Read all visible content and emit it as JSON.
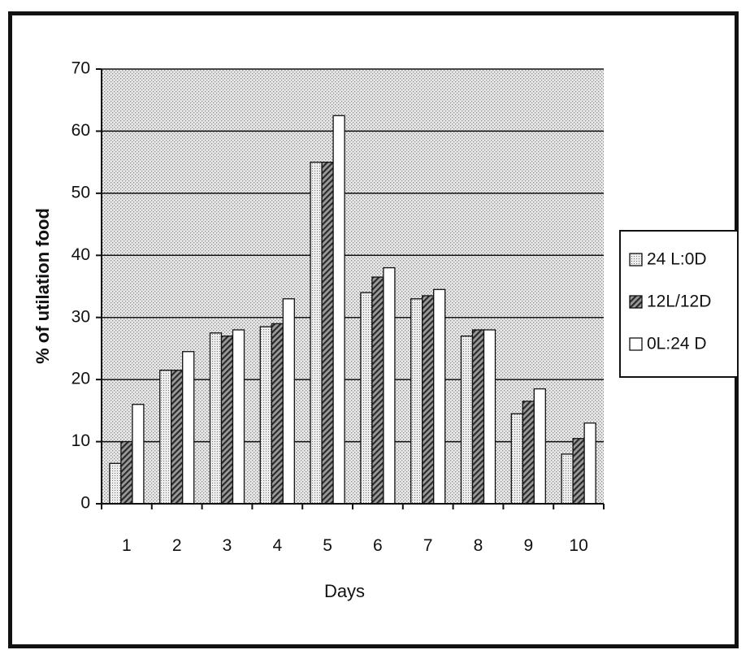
{
  "chart_data": {
    "type": "bar",
    "title": "",
    "xlabel": "Days",
    "ylabel": "% of utilation food",
    "ylim": [
      0,
      70
    ],
    "yticks": [
      0,
      10,
      20,
      30,
      40,
      50,
      60,
      70
    ],
    "grid": true,
    "legend_position": "right",
    "categories": [
      "1",
      "2",
      "3",
      "4",
      "5",
      "6",
      "7",
      "8",
      "9",
      "10"
    ],
    "series": [
      {
        "name": "24 L:0D",
        "pattern": "light-dotted",
        "values": [
          6.5,
          21.5,
          27.5,
          28.5,
          55,
          34,
          33,
          27,
          14.5,
          8
        ]
      },
      {
        "name": "12L/12D",
        "pattern": "hatched-dark",
        "values": [
          10,
          21.5,
          27,
          29,
          55,
          36.5,
          33.5,
          28,
          16.5,
          10.5
        ]
      },
      {
        "name": "0L:24 D",
        "pattern": "white",
        "values": [
          16,
          24.5,
          28,
          33,
          62.5,
          38,
          34.5,
          28,
          18.5,
          13
        ]
      }
    ]
  }
}
